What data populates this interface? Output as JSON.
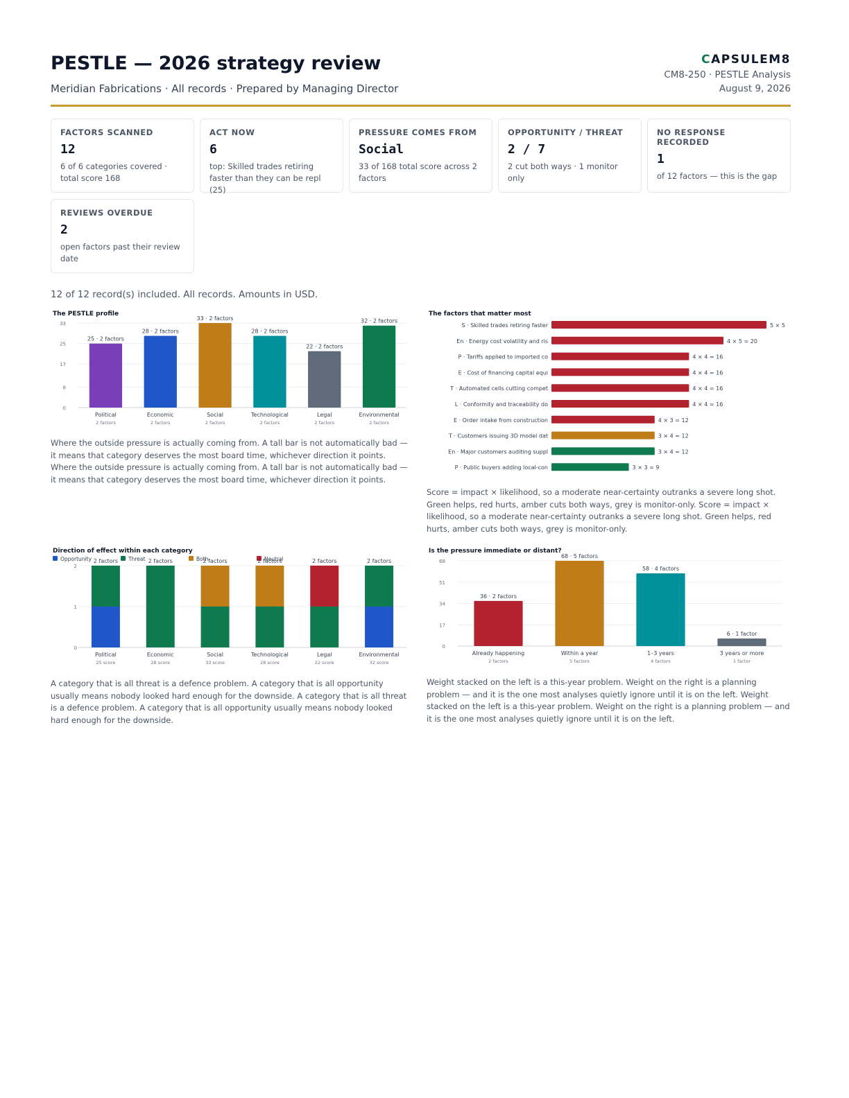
{
  "header": {
    "title": "PESTLE — 2026 strategy review",
    "subtitle": "Meridian Fabrications · All records · Prepared by Managing Director",
    "logo_mark": "C",
    "logo_text": "APSULEM8",
    "doc_id": "CM8-250 · PESTLE Analysis",
    "date": "August 9, 2026",
    "accent": "#c99a2e"
  },
  "cards": [
    {
      "label": "Factors scanned",
      "value": "12",
      "note": "6 of 6 categories covered · total score 168"
    },
    {
      "label": "Act now",
      "value": "6",
      "note": "top: Skilled trades retiring faster than they can be repl (25)"
    },
    {
      "label": "Pressure comes from",
      "value": "Social",
      "note": "33 of 168 total score across 2 factors"
    },
    {
      "label": "Opportunity / threat",
      "value": "2 / 7",
      "note": "2 cut both ways · 1 monitor only"
    },
    {
      "label": "No response recorded",
      "value": "1",
      "note": "of 12 factors — this is the gap"
    },
    {
      "label": "Reviews overdue",
      "value": "2",
      "note": "open factors past their review date"
    }
  ],
  "scope_note": "12 of 12 record(s) included. All records. Amounts in USD.",
  "captions": {
    "profile": "Where the outside pressure is actually coming from. A tall bar is not automatically bad — it means that category deserves the most board time, whichever direction it points. Where the outside pressure is actually coming from. A tall bar is not automatically bad — it means that category deserves the most board time, whichever direction it points.",
    "factors": "Score = impact × likelihood, so a moderate near-certainty outranks a severe long shot. Green helps, red hurts, amber cuts both ways, grey is monitor-only. Score = impact × likelihood, so a moderate near-certainty outranks a severe long shot. Green helps, red hurts, amber cuts both ways, grey is monitor-only.",
    "direction": "A category that is all threat is a defence problem. A category that is all opportunity usually means nobody looked hard enough for the downside. A category that is all threat is a defence problem. A category that is all opportunity usually means nobody looked hard enough for the downside.",
    "timing": "Weight stacked on the left is a this-year problem. Weight on the right is a planning problem — and it is the one most analyses quietly ignore until it is on the left. Weight stacked on the left is a this-year problem. Weight on the right is a planning problem — and it is the one most analyses quietly ignore until it is on the left."
  },
  "colors": {
    "political": "#7a3fb8",
    "economic": "#1f57c9",
    "social": "#c07c18",
    "technological": "#00909c",
    "legal": "#5f6b78",
    "environmental": "#0f7a4e",
    "red": "#b3222f",
    "green": "#0f7a4e",
    "amber": "#c07c18",
    "grey": "#5f6b78",
    "blue": "#1f57c9",
    "teal": "#00909c"
  },
  "chart_data": [
    {
      "id": "profile",
      "type": "bar",
      "title": "The PESTLE profile",
      "categories": [
        "Political",
        "Economic",
        "Social",
        "Technological",
        "Legal",
        "Environmental"
      ],
      "values": [
        25,
        28,
        33,
        28,
        22,
        32
      ],
      "sublabels": [
        "2 factors",
        "2 factors",
        "2 factors",
        "2 factors",
        "2 factors",
        "2 factors"
      ],
      "data_labels": [
        "25 · 2 factors",
        "28 · 2 factors",
        "33 · 2 factors",
        "28 · 2 factors",
        "22 · 2 factors",
        "32 · 2 factors"
      ],
      "colors": [
        "political",
        "economic",
        "social",
        "technological",
        "legal",
        "environmental"
      ],
      "yticks": [
        "0",
        "8",
        "17",
        "25",
        "33"
      ],
      "ylim": [
        0,
        33
      ]
    },
    {
      "id": "factors",
      "type": "bar",
      "orientation": "horizontal",
      "title": "The factors that matter most",
      "categories": [
        "S · Skilled trades retiring faster",
        "En · Energy cost volatility and ris",
        "P · Tariffs applied to imported co",
        "E · Cost of financing capital equi",
        "T · Automated cells cutting compet",
        "L · Conformity and traceability do",
        "E · Order intake from construction",
        "T · Customers issuing 3D model dat",
        "En · Major customers auditing suppl",
        "P · Public buyers adding local-con"
      ],
      "values": [
        25,
        20,
        16,
        16,
        16,
        16,
        12,
        12,
        12,
        9
      ],
      "data_labels": [
        "5 × 5",
        "4 × 5 = 20",
        "4 × 4 = 16",
        "4 × 4 = 16",
        "4 × 4 = 16",
        "4 × 4 = 16",
        "4 × 3 = 12",
        "3 × 4 = 12",
        "3 × 4 = 12",
        "3 × 3 = 9"
      ],
      "colors": [
        "red",
        "red",
        "red",
        "red",
        "red",
        "red",
        "red",
        "amber",
        "green",
        "green"
      ],
      "xlim": [
        0,
        25
      ]
    },
    {
      "id": "direction",
      "type": "bar",
      "stacked": true,
      "title": "Direction of effect within each category",
      "categories": [
        "Political",
        "Economic",
        "Social",
        "Technological",
        "Legal",
        "Environmental"
      ],
      "sublabels": [
        "25 score",
        "28 score",
        "33 score",
        "28 score",
        "22 score",
        "32 score"
      ],
      "data_labels": [
        "2 factors",
        "2 factors",
        "2 factors",
        "2 factors",
        "2 factors",
        "2 factors"
      ],
      "series": [
        {
          "name": "Opportunity",
          "color": "blue",
          "values": [
            1,
            0,
            0,
            0,
            0,
            1
          ]
        },
        {
          "name": "Threat",
          "color": "green",
          "values": [
            1,
            2,
            1,
            1,
            1,
            1
          ]
        },
        {
          "name": "Both",
          "color": "amber",
          "values": [
            0,
            0,
            1,
            1,
            0,
            0
          ]
        },
        {
          "name": "Neutral",
          "color": "red",
          "values": [
            0,
            0,
            0,
            0,
            1,
            0
          ]
        }
      ],
      "yticks": [
        "0",
        "1",
        "2"
      ],
      "ylim": [
        0,
        2
      ],
      "legend": "top-left"
    },
    {
      "id": "timing",
      "type": "bar",
      "title": "Is the pressure immediate or distant?",
      "categories": [
        "Already happening",
        "Within a year",
        "1–3 years",
        "3 years or more"
      ],
      "values": [
        36,
        68,
        58,
        6
      ],
      "sublabels": [
        "2 factors",
        "5 factors",
        "4 factors",
        "1 factor"
      ],
      "data_labels": [
        "36 · 2 factors",
        "68 · 5 factors",
        "58 · 4 factors",
        "6 · 1 factor"
      ],
      "colors": [
        "red",
        "amber",
        "teal",
        "grey"
      ],
      "yticks": [
        "0",
        "17",
        "34",
        "51",
        "68"
      ],
      "ylim": [
        0,
        68
      ]
    }
  ]
}
